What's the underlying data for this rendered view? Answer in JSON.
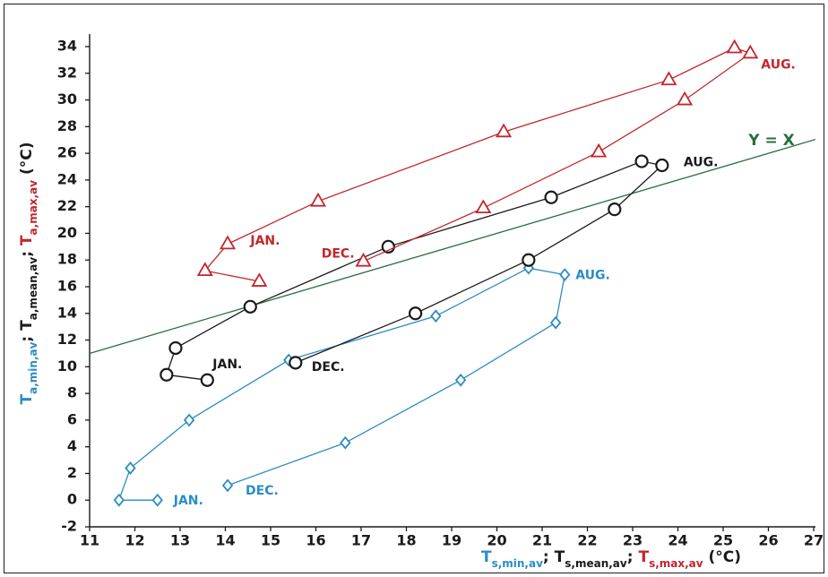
{
  "chart_data": {
    "type": "scatter",
    "xlim": [
      11,
      27
    ],
    "ylim": [
      -2,
      34
    ],
    "xticks": [
      11,
      12,
      13,
      14,
      15,
      16,
      17,
      18,
      19,
      20,
      21,
      22,
      23,
      24,
      25,
      26,
      27
    ],
    "yticks": [
      -2,
      0,
      2,
      4,
      6,
      8,
      10,
      12,
      14,
      16,
      18,
      20,
      22,
      24,
      26,
      28,
      30,
      32,
      34
    ],
    "x_label": [
      {
        "text": "T",
        "sub": "s,min,av",
        "sep": ";"
      },
      {
        "text": "T",
        "sub": "s,mean,av",
        "sep": ";"
      },
      {
        "text": "T",
        "sub": "s,max,av"
      }
    ],
    "x_label_unit": "(°C)",
    "y_label": [
      {
        "text": "T",
        "sub": "a,min,av",
        "sep": ";"
      },
      {
        "text": "T",
        "sub": "a,mean,av",
        "sep": ";"
      },
      {
        "text": "T",
        "sub": "a,max,av"
      }
    ],
    "y_label_unit": "(°C)",
    "reference_line": {
      "label": "Y = X",
      "slope": 1,
      "intercept": 0,
      "color": "#2a6e3f"
    },
    "series": [
      {
        "color": "#2b8cc4",
        "marker": "diamond",
        "x": [
          12.5,
          11.65,
          11.9,
          13.2,
          15.4,
          18.65,
          20.7,
          21.5,
          21.3,
          19.2,
          16.65,
          14.05
        ],
        "values": [
          0,
          0,
          2.4,
          6.0,
          10.5,
          13.8,
          17.4,
          16.9,
          13.3,
          9.0,
          4.3,
          1.1
        ],
        "point_labels": [
          "JAN.",
          null,
          null,
          null,
          null,
          null,
          null,
          "AUG.",
          null,
          null,
          null,
          "DEC."
        ]
      },
      {
        "color": "#1a1a1a",
        "marker": "circle",
        "x": [
          13.6,
          12.7,
          12.9,
          14.55,
          17.6,
          21.2,
          23.2,
          23.65,
          22.6,
          20.7,
          18.2,
          15.55
        ],
        "values": [
          9.0,
          9.4,
          11.4,
          14.5,
          19.0,
          22.7,
          25.4,
          25.1,
          21.8,
          18.0,
          14.0,
          10.3
        ],
        "point_labels": [
          "JAN.",
          null,
          null,
          null,
          null,
          null,
          null,
          "AUG.",
          null,
          null,
          null,
          "DEC."
        ]
      },
      {
        "color": "#c1272d",
        "marker": "triangle",
        "x": [
          14.75,
          13.55,
          14.05,
          16.05,
          20.15,
          23.8,
          25.25,
          25.6,
          24.15,
          22.25,
          19.7,
          17.05
        ],
        "values": [
          16.4,
          17.2,
          19.2,
          22.4,
          27.6,
          31.5,
          33.9,
          33.5,
          30.0,
          26.1,
          21.9,
          17.9
        ],
        "point_labels": [
          "JAN.",
          null,
          null,
          null,
          null,
          null,
          null,
          "AUG.",
          null,
          null,
          null,
          "DEC."
        ]
      }
    ]
  }
}
